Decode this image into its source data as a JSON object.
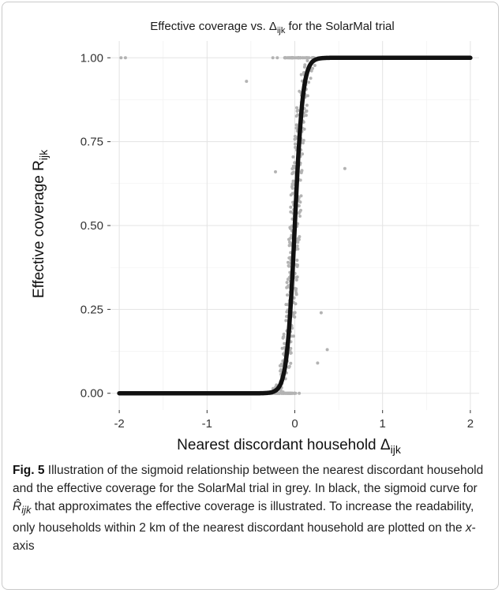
{
  "chart_data": {
    "type": "scatter",
    "title": {
      "prefix": "Effective coverage vs. Δ",
      "subscript": "ijk",
      "suffix": " for the SolarMal trial"
    },
    "xlabel": {
      "main": "Nearest discordant household Δ",
      "subscript": "ijk"
    },
    "ylabel": {
      "main": "Effective coverage R",
      "subscript": "ijk"
    },
    "xlim": [
      -2.1,
      2.1
    ],
    "ylim": [
      -0.05,
      1.05
    ],
    "x_ticks": [
      -2,
      -1,
      0,
      1,
      2
    ],
    "x_tick_labels": [
      "-2",
      "-1",
      "0",
      "1",
      "2"
    ],
    "y_ticks": [
      0,
      0.25,
      0.5,
      0.75,
      1
    ],
    "y_tick_labels": [
      "0.00",
      "0.25",
      "0.50",
      "0.75",
      "1.00"
    ],
    "grid": true,
    "series": [
      {
        "role": "observed",
        "color": "#b3b3b3",
        "points": [
          [
            -1.98,
            1.0
          ],
          [
            -1.93,
            1.0
          ],
          [
            -0.55,
            0.93
          ],
          [
            0.57,
            0.67
          ],
          [
            -0.22,
            0.66
          ],
          [
            0.3,
            0.24
          ],
          [
            0.37,
            0.13
          ],
          [
            0.26,
            0.09
          ],
          [
            -0.2,
            0.0
          ],
          [
            -0.15,
            0.0
          ],
          [
            0.22,
            1.0
          ],
          [
            0.27,
            1.0
          ],
          [
            -0.25,
            1.0
          ],
          [
            -0.2,
            1.0
          ],
          [
            0.05,
            0.0
          ]
        ]
      },
      {
        "role": "sigmoid",
        "color": "#111111",
        "center": 0,
        "steepness": 22,
        "x_range": [
          -2,
          2
        ]
      }
    ]
  },
  "caption": {
    "label": "Fig. 5",
    "part1": "Illustration of the sigmoid relationship between the nearest discordant household and the effective coverage for the SolarMal trial in grey. In black, the sigmoid curve for ",
    "symbol": "R̂",
    "symbol_sub": "ijk",
    "part2": " that approximates the effective coverage is illustrated. To increase the readability, only households within 2 km of the nearest discordant household are plotted on the ",
    "axis_word": "x",
    "part3": "-axis"
  }
}
